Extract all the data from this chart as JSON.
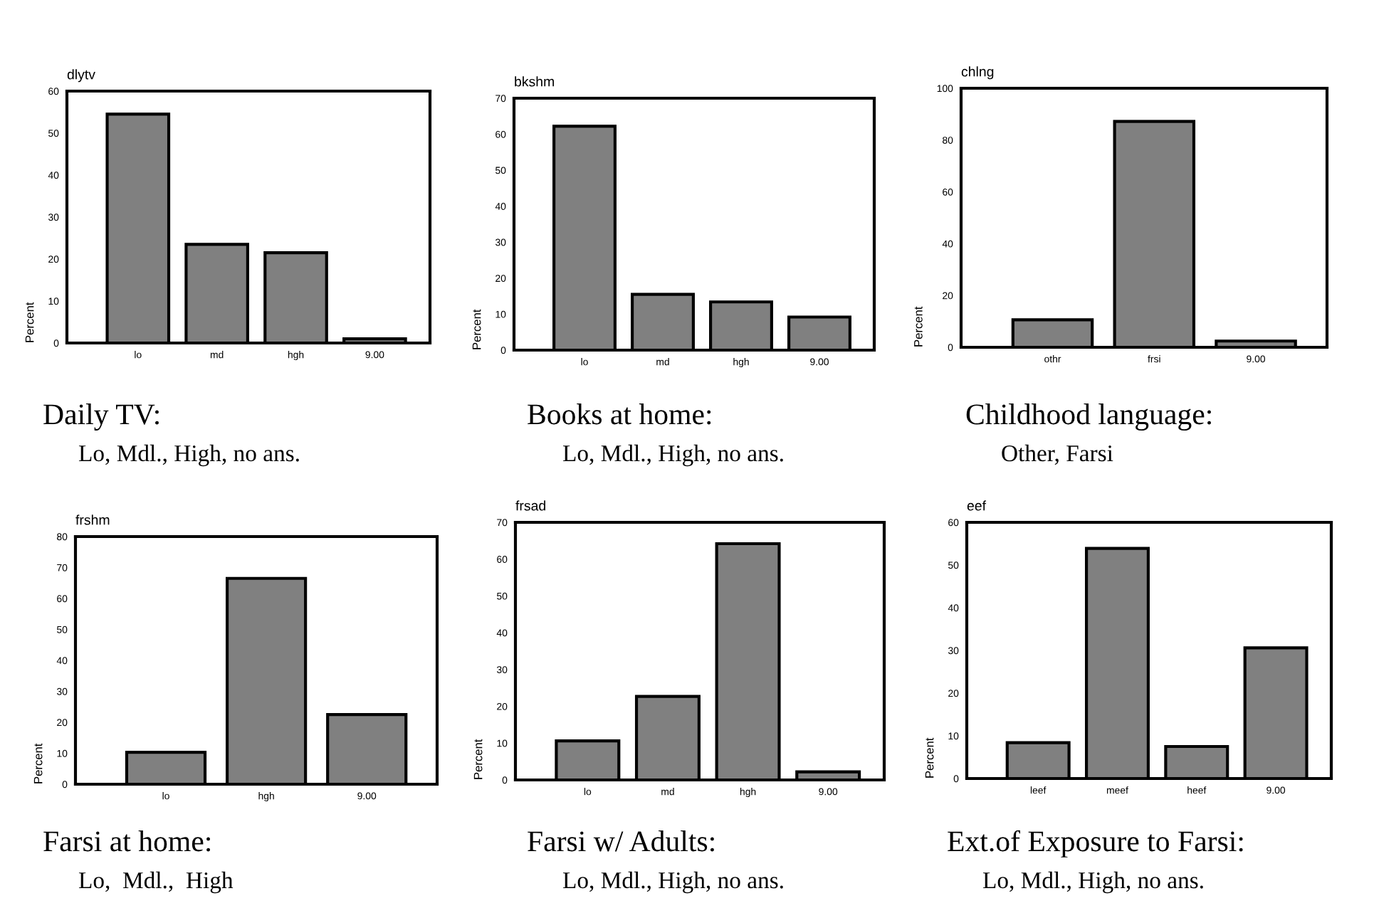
{
  "chart_data": [
    {
      "type": "bar",
      "title": "dlytv",
      "ylabel": "Percent",
      "categories": [
        "lo",
        "md",
        "hgh",
        "9.00"
      ],
      "values": [
        54.5,
        23.5,
        21.5,
        1
      ],
      "color": "#808080",
      "ylim": [
        0,
        60
      ],
      "yticks": [
        0,
        10,
        20,
        30,
        40,
        50,
        60
      ],
      "annotations": [
        "Daily TV:",
        "Lo, Mdl., High, no ans."
      ]
    },
    {
      "type": "bar",
      "title": "bkshm",
      "ylabel": "Percent",
      "categories": [
        "lo",
        "md",
        "hgh",
        "9.00"
      ],
      "values": [
        62.2,
        15.5,
        13.4,
        9.2
      ],
      "color": "#808080",
      "ylim": [
        0,
        70
      ],
      "yticks": [
        0,
        10,
        20,
        30,
        40,
        50,
        60,
        70
      ],
      "annotations": [
        "Books at home:",
        "Lo, Mdl., High, no ans."
      ]
    },
    {
      "type": "bar",
      "title": "chlng",
      "ylabel": "Percent",
      "categories": [
        "othr",
        "frsi",
        "9.00"
      ],
      "values": [
        10.6,
        87.2,
        2.4
      ],
      "color": "#808080",
      "ylim": [
        0,
        100
      ],
      "yticks": [
        0,
        20,
        40,
        60,
        80,
        100
      ],
      "annotations": [
        "Childhood language:",
        "Other, Farsi"
      ]
    },
    {
      "type": "bar",
      "title": "frshm",
      "ylabel": "Percent",
      "categories": [
        "lo",
        "hgh",
        "9.00"
      ],
      "values": [
        10.3,
        66.5,
        22.5
      ],
      "color": "#808080",
      "ylim": [
        0,
        80
      ],
      "yticks": [
        0,
        10,
        20,
        30,
        40,
        50,
        60,
        70,
        80
      ],
      "annotations": [
        "Farsi at home:",
        "Lo,  Mdl.,  High"
      ]
    },
    {
      "type": "bar",
      "title": "frsad",
      "ylabel": "Percent",
      "categories": [
        "lo",
        "md",
        "hgh",
        "9.00"
      ],
      "values": [
        10.6,
        22.7,
        64.2,
        2.2
      ],
      "color": "#808080",
      "ylim": [
        0,
        70
      ],
      "yticks": [
        0,
        10,
        20,
        30,
        40,
        50,
        60,
        70
      ],
      "annotations": [
        "Farsi w/ Adults:",
        "Lo, Mdl., High, no ans."
      ]
    },
    {
      "type": "bar",
      "title": "eef",
      "ylabel": "Percent",
      "categories": [
        "leef",
        "meef",
        "heef",
        "9.00"
      ],
      "values": [
        8.4,
        53.9,
        7.5,
        30.6
      ],
      "color": "#808080",
      "ylim": [
        0,
        60
      ],
      "yticks": [
        0,
        10,
        20,
        30,
        40,
        50,
        60
      ],
      "annotations": [
        "Ext.of Exposure to Farsi:",
        "Lo, Mdl., High, no ans."
      ]
    }
  ]
}
